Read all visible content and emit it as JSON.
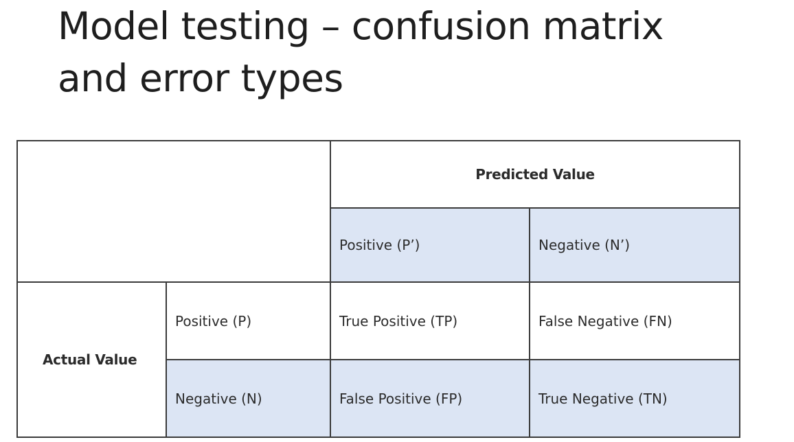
{
  "slide": {
    "title_line1": "Model testing – confusion matrix",
    "title_line2": "and error types"
  },
  "matrix": {
    "predicted_header": "Predicted Value",
    "predicted_positive": "Positive (P’)",
    "predicted_negative": "Negative (N’)",
    "actual_header": "Actual Value",
    "actual_positive": "Positive (P)",
    "actual_negative": "Negative (N)",
    "tp": "True Positive (TP)",
    "fn": "False Negative (FN)",
    "fp": "False Positive (FP)",
    "tn": "True Negative (TN)",
    "shade_color": "#dce5f4",
    "line_color": "#3a3a3a"
  }
}
